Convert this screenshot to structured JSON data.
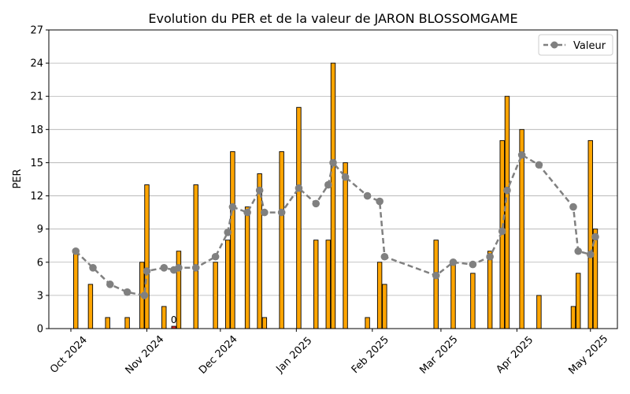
{
  "chart_data": {
    "type": "bar",
    "title": "Evolution du PER et de la valeur de JARON BLOSSOMGAME",
    "xlabel": "",
    "ylabel": "PER",
    "ylim": [
      0,
      27
    ],
    "yticks": [
      0,
      3,
      6,
      9,
      12,
      15,
      18,
      21,
      24,
      27
    ],
    "xlim": [
      "2024-09-22",
      "2025-05-12"
    ],
    "xticks": [
      {
        "date": "2024-10-01",
        "label": "Oct 2024"
      },
      {
        "date": "2024-11-01",
        "label": "Nov 2024"
      },
      {
        "date": "2024-12-01",
        "label": "Dec 2024"
      },
      {
        "date": "2025-01-01",
        "label": "Jan 2025"
      },
      {
        "date": "2025-02-01",
        "label": "Feb 2025"
      },
      {
        "date": "2025-03-01",
        "label": "Mar 2025"
      },
      {
        "date": "2025-04-01",
        "label": "Apr 2025"
      },
      {
        "date": "2025-05-01",
        "label": "May 2025"
      }
    ],
    "grid": "horizontal",
    "legend": {
      "position": "top-right",
      "entries": [
        "Valeur"
      ]
    },
    "colors": {
      "bar": "#FFA500",
      "bar_zero": "#d62728",
      "bar_edge": "#000000",
      "line": "#808080"
    },
    "bars": [
      {
        "x": "2024-10-03",
        "per": 7
      },
      {
        "x": "2024-10-09",
        "per": 4
      },
      {
        "x": "2024-10-16",
        "per": 1
      },
      {
        "x": "2024-10-24",
        "per": 1
      },
      {
        "x": "2024-10-30",
        "per": 6
      },
      {
        "x": "2024-11-01",
        "per": 13
      },
      {
        "x": "2024-11-08",
        "per": 2
      },
      {
        "x": "2024-11-12",
        "per": 0,
        "label": "0"
      },
      {
        "x": "2024-11-14",
        "per": 7
      },
      {
        "x": "2024-11-21",
        "per": 13
      },
      {
        "x": "2024-11-29",
        "per": 6
      },
      {
        "x": "2024-12-04",
        "per": 8
      },
      {
        "x": "2024-12-06",
        "per": 16
      },
      {
        "x": "2024-12-12",
        "per": 11
      },
      {
        "x": "2024-12-17",
        "per": 14
      },
      {
        "x": "2024-12-19",
        "per": 1
      },
      {
        "x": "2024-12-26",
        "per": 16
      },
      {
        "x": "2025-01-02",
        "per": 20
      },
      {
        "x": "2025-01-09",
        "per": 8
      },
      {
        "x": "2025-01-14",
        "per": 8
      },
      {
        "x": "2025-01-16",
        "per": 24
      },
      {
        "x": "2025-01-21",
        "per": 15
      },
      {
        "x": "2025-01-30",
        "per": 1
      },
      {
        "x": "2025-02-04",
        "per": 6
      },
      {
        "x": "2025-02-06",
        "per": 4
      },
      {
        "x": "2025-02-27",
        "per": 8
      },
      {
        "x": "2025-03-06",
        "per": 6
      },
      {
        "x": "2025-03-14",
        "per": 5
      },
      {
        "x": "2025-03-21",
        "per": 7
      },
      {
        "x": "2025-03-26",
        "per": 17
      },
      {
        "x": "2025-03-28",
        "per": 21
      },
      {
        "x": "2025-04-03",
        "per": 18
      },
      {
        "x": "2025-04-10",
        "per": 3
      },
      {
        "x": "2025-04-24",
        "per": 2
      },
      {
        "x": "2025-04-26",
        "per": 5
      },
      {
        "x": "2025-05-01",
        "per": 17
      },
      {
        "x": "2025-05-03",
        "per": 9
      }
    ],
    "series": [
      {
        "name": "Valeur",
        "type": "line",
        "points": [
          {
            "x": "2024-10-03",
            "y": 7.0
          },
          {
            "x": "2024-10-10",
            "y": 5.5
          },
          {
            "x": "2024-10-17",
            "y": 4.0
          },
          {
            "x": "2024-10-24",
            "y": 3.3
          },
          {
            "x": "2024-10-31",
            "y": 3.0
          },
          {
            "x": "2024-11-01",
            "y": 5.2
          },
          {
            "x": "2024-11-08",
            "y": 5.5
          },
          {
            "x": "2024-11-12",
            "y": 5.3
          },
          {
            "x": "2024-11-14",
            "y": 5.5
          },
          {
            "x": "2024-11-21",
            "y": 5.5
          },
          {
            "x": "2024-11-29",
            "y": 6.5
          },
          {
            "x": "2024-12-04",
            "y": 8.7
          },
          {
            "x": "2024-12-06",
            "y": 11.0
          },
          {
            "x": "2024-12-12",
            "y": 10.5
          },
          {
            "x": "2024-12-17",
            "y": 12.5
          },
          {
            "x": "2024-12-19",
            "y": 10.5
          },
          {
            "x": "2024-12-26",
            "y": 10.5
          },
          {
            "x": "2025-01-02",
            "y": 12.7
          },
          {
            "x": "2025-01-09",
            "y": 11.3
          },
          {
            "x": "2025-01-14",
            "y": 13.0
          },
          {
            "x": "2025-01-16",
            "y": 15.0
          },
          {
            "x": "2025-01-21",
            "y": 13.7
          },
          {
            "x": "2025-01-30",
            "y": 12.0
          },
          {
            "x": "2025-02-04",
            "y": 11.5
          },
          {
            "x": "2025-02-06",
            "y": 6.5
          },
          {
            "x": "2025-02-27",
            "y": 4.8
          },
          {
            "x": "2025-03-06",
            "y": 6.0
          },
          {
            "x": "2025-03-14",
            "y": 5.8
          },
          {
            "x": "2025-03-21",
            "y": 6.5
          },
          {
            "x": "2025-03-26",
            "y": 8.8
          },
          {
            "x": "2025-03-28",
            "y": 12.5
          },
          {
            "x": "2025-04-03",
            "y": 15.7
          },
          {
            "x": "2025-04-10",
            "y": 14.8
          },
          {
            "x": "2025-04-24",
            "y": 11.0
          },
          {
            "x": "2025-04-26",
            "y": 7.0
          },
          {
            "x": "2025-05-01",
            "y": 6.7
          },
          {
            "x": "2025-05-03",
            "y": 8.3
          }
        ]
      }
    ]
  }
}
